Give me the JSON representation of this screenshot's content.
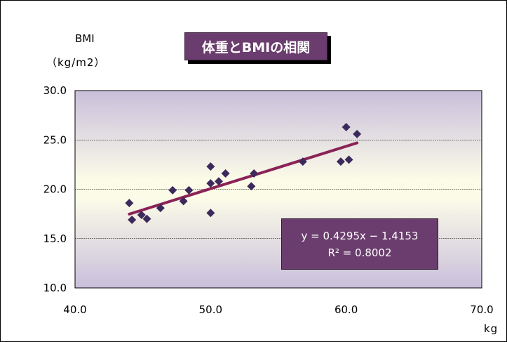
{
  "chart_data": {
    "type": "scatter",
    "title": "体重とBMIの相関",
    "ylabel_line1": "BMI",
    "ylabel_line2": "（kg/m2）",
    "xlabel": "kg",
    "xlim": [
      40,
      70
    ],
    "ylim": [
      10,
      30
    ],
    "x_ticks": [
      "40.0",
      "50.0",
      "60.0",
      "70.0"
    ],
    "y_ticks": [
      "10.0",
      "15.0",
      "20.0",
      "25.0",
      "30.0"
    ],
    "grid": "horizontal",
    "points": [
      {
        "x": 44.0,
        "y": 18.6
      },
      {
        "x": 44.2,
        "y": 16.9
      },
      {
        "x": 44.9,
        "y": 17.4
      },
      {
        "x": 45.3,
        "y": 17.0
      },
      {
        "x": 46.3,
        "y": 18.1
      },
      {
        "x": 47.2,
        "y": 19.9
      },
      {
        "x": 48.0,
        "y": 18.8
      },
      {
        "x": 48.4,
        "y": 19.9
      },
      {
        "x": 50.0,
        "y": 22.3
      },
      {
        "x": 50.0,
        "y": 20.6
      },
      {
        "x": 50.0,
        "y": 17.6
      },
      {
        "x": 50.6,
        "y": 20.8
      },
      {
        "x": 51.1,
        "y": 21.6
      },
      {
        "x": 53.0,
        "y": 20.3
      },
      {
        "x": 53.2,
        "y": 21.6
      },
      {
        "x": 56.8,
        "y": 22.8
      },
      {
        "x": 59.6,
        "y": 22.8
      },
      {
        "x": 60.0,
        "y": 26.3
      },
      {
        "x": 60.2,
        "y": 23.0
      },
      {
        "x": 60.8,
        "y": 25.6
      }
    ],
    "trendline": {
      "x_range": [
        44.0,
        60.8
      ],
      "slope": 0.4295,
      "intercept": -1.4153,
      "equation": "y = 0.4295x − 1.4153",
      "r2_label": "R² = 0.8002"
    },
    "colors": {
      "marker": "#3d2a5c",
      "trendline": "#8b2257",
      "plot_top": "#c9bfdb",
      "plot_mid": "#fbfbe8",
      "label_box": "#6b3d6e"
    }
  }
}
